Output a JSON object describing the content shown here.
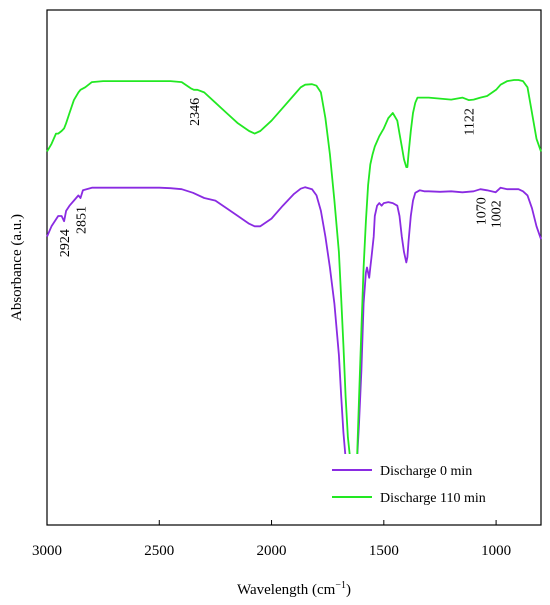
{
  "chart_data": {
    "type": "line",
    "xlabel": "Wavelength (cm",
    "xlabel_sup": "−1",
    "xlabel_end": ")",
    "ylabel": "Absorbance (a.u.)",
    "xlim": [
      3000,
      800
    ],
    "x_reversed": true,
    "xticks": [
      3000,
      2500,
      2000,
      1500,
      1000
    ],
    "ylim": [
      0,
      1
    ],
    "y_ticks_shown": false,
    "grid": false,
    "legend_position": "bottom-right",
    "series": [
      {
        "name": "Discharge 0 min",
        "color": "#8a2be2",
        "x": [
          3000,
          2980,
          2950,
          2935,
          2924,
          2915,
          2900,
          2880,
          2860,
          2851,
          2840,
          2800,
          2700,
          2600,
          2500,
          2450,
          2400,
          2350,
          2300,
          2250,
          2200,
          2150,
          2100,
          2075,
          2050,
          2000,
          1950,
          1900,
          1870,
          1850,
          1820,
          1800,
          1780,
          1760,
          1740,
          1720,
          1700,
          1690,
          1680,
          1670,
          1660,
          1650,
          1640,
          1635,
          1630,
          1620,
          1610,
          1600,
          1590,
          1580,
          1575,
          1565,
          1560,
          1555,
          1545,
          1540,
          1530,
          1520,
          1510,
          1500,
          1480,
          1460,
          1440,
          1430,
          1420,
          1410,
          1400,
          1395,
          1390,
          1380,
          1370,
          1360,
          1340,
          1320,
          1300,
          1250,
          1200,
          1150,
          1100,
          1070,
          1040,
          1002,
          980,
          950,
          920,
          900,
          880,
          860,
          840,
          820,
          800
        ],
        "y": [
          0.56,
          0.58,
          0.6,
          0.6,
          0.59,
          0.61,
          0.62,
          0.63,
          0.64,
          0.635,
          0.65,
          0.655,
          0.655,
          0.655,
          0.655,
          0.654,
          0.652,
          0.645,
          0.635,
          0.63,
          0.615,
          0.6,
          0.585,
          0.58,
          0.58,
          0.595,
          0.62,
          0.643,
          0.653,
          0.656,
          0.652,
          0.64,
          0.61,
          0.56,
          0.5,
          0.43,
          0.33,
          0.25,
          0.18,
          0.13,
          0.1,
          0.085,
          0.08,
          0.08,
          0.085,
          0.12,
          0.2,
          0.3,
          0.43,
          0.49,
          0.5,
          0.48,
          0.5,
          0.52,
          0.56,
          0.6,
          0.62,
          0.625,
          0.62,
          0.625,
          0.627,
          0.625,
          0.62,
          0.6,
          0.56,
          0.53,
          0.51,
          0.52,
          0.55,
          0.6,
          0.63,
          0.645,
          0.65,
          0.648,
          0.648,
          0.647,
          0.648,
          0.646,
          0.648,
          0.652,
          0.65,
          0.646,
          0.655,
          0.652,
          0.652,
          0.652,
          0.648,
          0.64,
          0.615,
          0.58,
          0.555
        ]
      },
      {
        "name": "Discharge 110 min",
        "color": "#22e822",
        "x": [
          3000,
          2980,
          2960,
          2950,
          2935,
          2924,
          2915,
          2900,
          2880,
          2860,
          2851,
          2830,
          2800,
          2750,
          2700,
          2600,
          2500,
          2450,
          2400,
          2360,
          2346,
          2330,
          2300,
          2250,
          2200,
          2150,
          2100,
          2075,
          2050,
          2000,
          1950,
          1900,
          1870,
          1850,
          1820,
          1800,
          1780,
          1760,
          1740,
          1720,
          1700,
          1690,
          1680,
          1670,
          1660,
          1650,
          1640,
          1635,
          1630,
          1620,
          1610,
          1600,
          1590,
          1580,
          1570,
          1560,
          1550,
          1540,
          1530,
          1520,
          1500,
          1480,
          1460,
          1440,
          1430,
          1420,
          1410,
          1400,
          1395,
          1390,
          1380,
          1370,
          1360,
          1350,
          1300,
          1250,
          1200,
          1150,
          1122,
          1100,
          1070,
          1040,
          1000,
          980,
          950,
          920,
          900,
          880,
          860,
          840,
          820,
          800
        ],
        "y": [
          0.725,
          0.74,
          0.76,
          0.76,
          0.765,
          0.77,
          0.78,
          0.8,
          0.825,
          0.84,
          0.845,
          0.85,
          0.86,
          0.862,
          0.862,
          0.862,
          0.862,
          0.862,
          0.86,
          0.848,
          0.845,
          0.845,
          0.84,
          0.82,
          0.8,
          0.78,
          0.765,
          0.76,
          0.765,
          0.785,
          0.81,
          0.835,
          0.85,
          0.855,
          0.856,
          0.853,
          0.84,
          0.79,
          0.72,
          0.63,
          0.53,
          0.44,
          0.35,
          0.25,
          0.17,
          0.13,
          0.11,
          0.1,
          0.1,
          0.12,
          0.25,
          0.38,
          0.5,
          0.59,
          0.66,
          0.7,
          0.72,
          0.735,
          0.745,
          0.755,
          0.77,
          0.79,
          0.8,
          0.785,
          0.76,
          0.735,
          0.71,
          0.695,
          0.695,
          0.72,
          0.765,
          0.8,
          0.82,
          0.83,
          0.83,
          0.828,
          0.826,
          0.83,
          0.825,
          0.826,
          0.83,
          0.833,
          0.845,
          0.855,
          0.862,
          0.864,
          0.864,
          0.862,
          0.85,
          0.8,
          0.75,
          0.725
        ]
      }
    ],
    "annotations": [
      {
        "text": "2346",
        "x": 2346,
        "series": 1
      },
      {
        "text": "1122",
        "x": 1122,
        "series": 1
      },
      {
        "text": "2924",
        "x": 2924,
        "series": 0
      },
      {
        "text": "2851",
        "x": 2851,
        "series": 0
      },
      {
        "text": "1070",
        "x": 1070,
        "series": 0
      },
      {
        "text": "1002",
        "x": 1002,
        "series": 0
      }
    ]
  }
}
